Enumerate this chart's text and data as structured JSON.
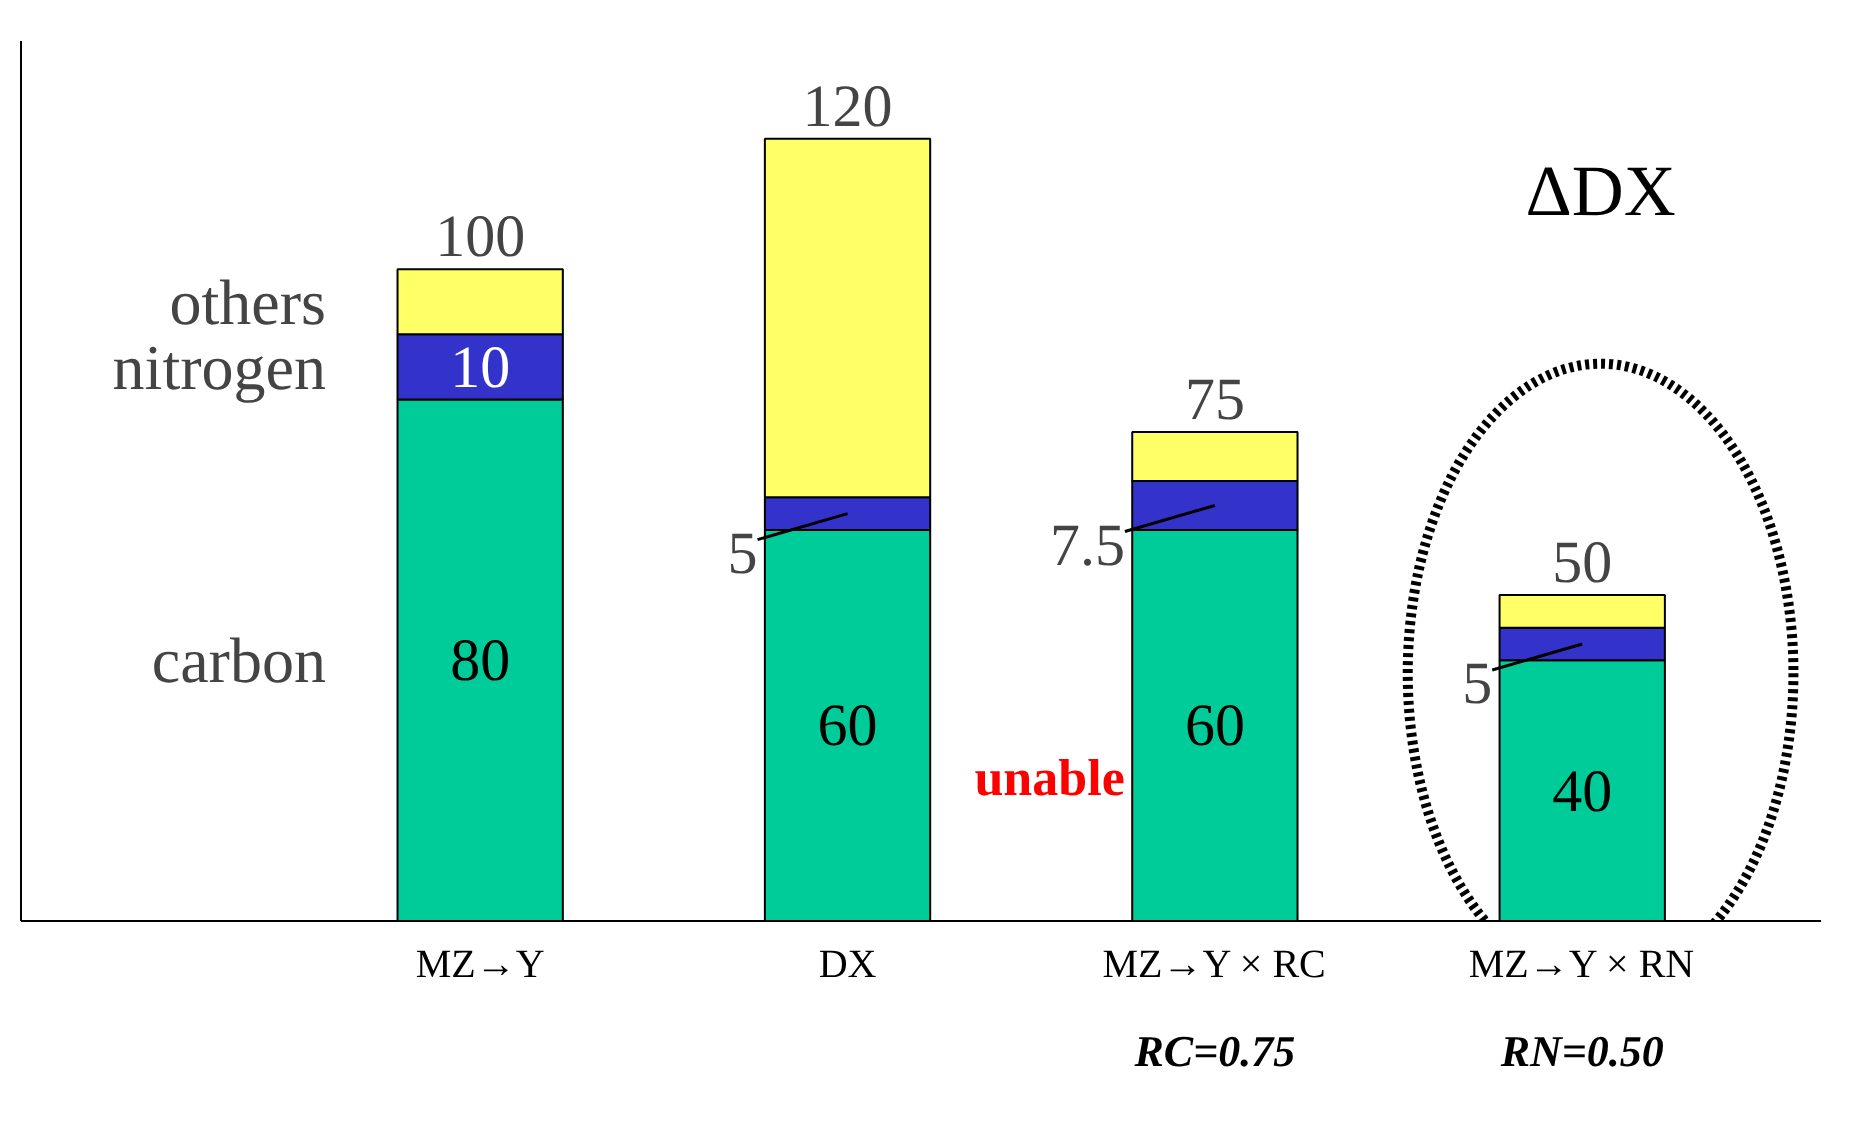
{
  "chart_data": {
    "type": "bar",
    "stacked": true,
    "categories": [
      "MZ→Y",
      "DX",
      "MZ→Y × RC",
      "MZ→Y × RN"
    ],
    "series": [
      {
        "name": "carbon",
        "color": "#00cc99",
        "values": [
          80,
          60,
          60,
          40
        ],
        "value_labels": [
          "80",
          "60",
          "60",
          "40"
        ]
      },
      {
        "name": "nitrogen",
        "color": "#3333cc",
        "values": [
          10,
          5,
          7.5,
          5
        ],
        "value_labels": [
          "10",
          "5",
          "7.5",
          "5"
        ]
      },
      {
        "name": "others",
        "color": "#ffff66",
        "values": [
          10,
          55,
          7.5,
          5
        ]
      }
    ],
    "totals": [
      "100",
      "120",
      "75",
      "50"
    ],
    "ylim": [
      0,
      135
    ],
    "tick_labels": "x",
    "legend": "left",
    "grid": false,
    "annotations": [
      "unable",
      "ΔDX",
      "RC=0.75",
      "RN=0.50"
    ]
  }
}
